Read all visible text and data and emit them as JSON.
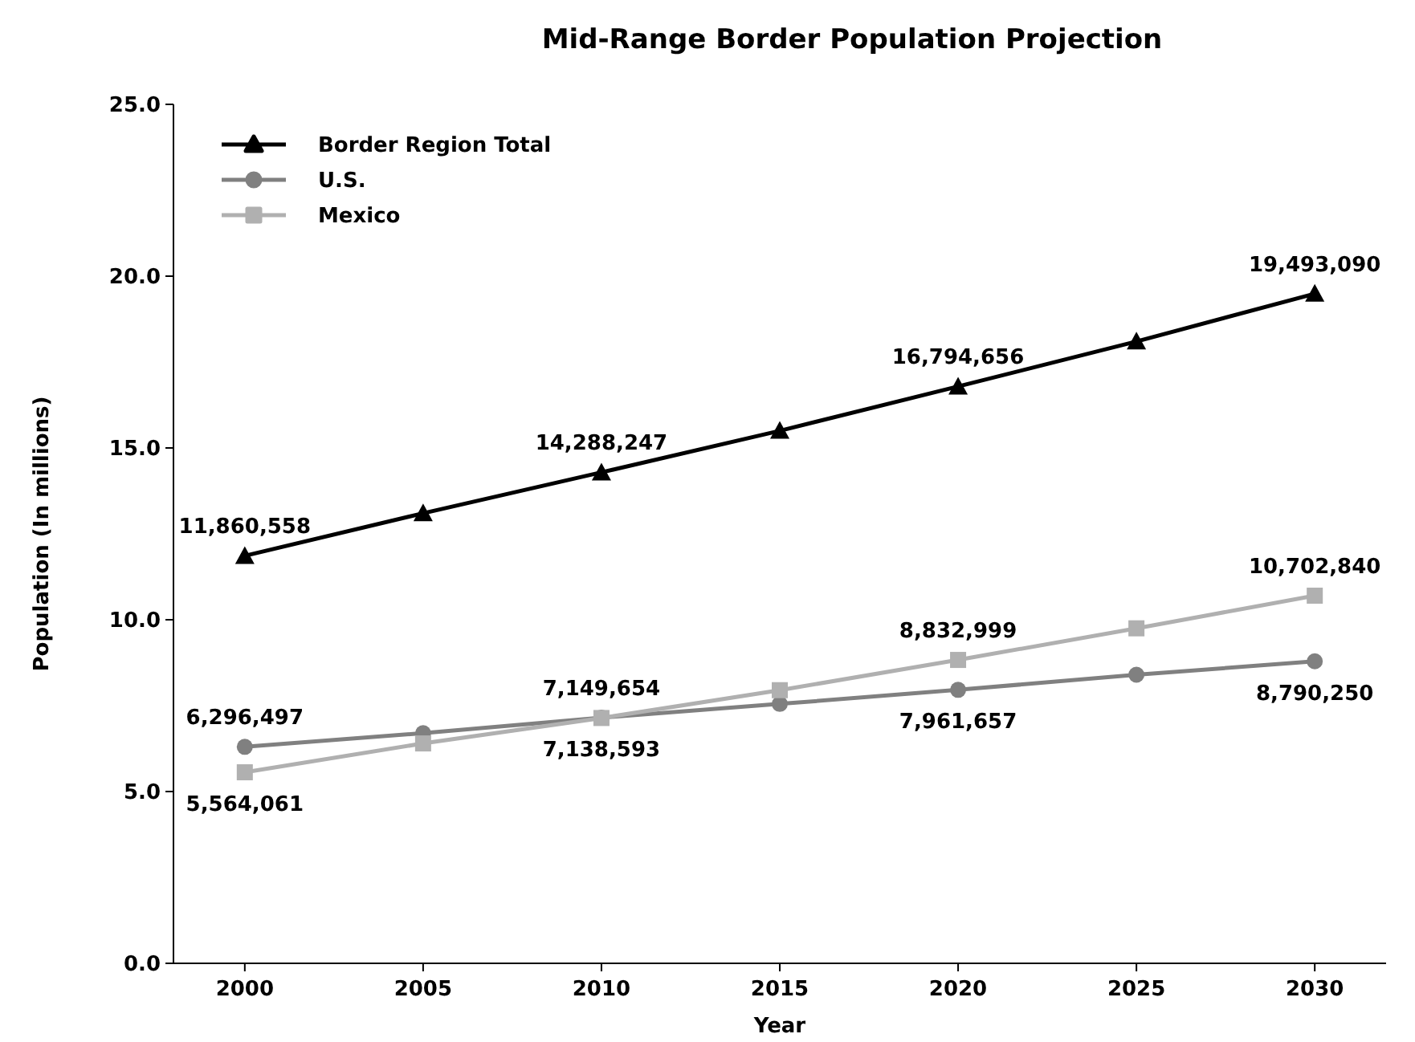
{
  "chart_data": {
    "type": "line",
    "title": "Mid-Range Border Population Projection",
    "xlabel": "Year",
    "ylabel": "Population (In millions)",
    "categories": [
      "2000",
      "2005",
      "2010",
      "2015",
      "2020",
      "2025",
      "2030"
    ],
    "ylim": [
      0,
      25
    ],
    "yticks": [
      {
        "value": 0,
        "label": "0.0"
      },
      {
        "value": 5,
        "label": "5.0"
      },
      {
        "value": 10,
        "label": "10.0"
      },
      {
        "value": 15,
        "label": "15.0"
      },
      {
        "value": 20,
        "label": "20.0"
      },
      {
        "value": 25,
        "label": "25.0"
      }
    ],
    "legend": "top left",
    "grid": false,
    "series": [
      {
        "name": "Border Region Total",
        "color": "#000000",
        "marker": "triangle",
        "values": [
          11.86,
          13.1,
          14.29,
          15.5,
          16.79,
          18.1,
          19.49
        ]
      },
      {
        "name": "U.S.",
        "color": "#808080",
        "marker": "circle",
        "values": [
          6.3,
          6.7,
          7.15,
          7.55,
          7.96,
          8.4,
          8.79
        ]
      },
      {
        "name": "Mexico",
        "color": "#b0b0b0",
        "marker": "square",
        "values": [
          5.56,
          6.4,
          7.14,
          7.95,
          8.83,
          9.75,
          10.7
        ]
      }
    ],
    "annotations": [
      {
        "text": "11,860,558",
        "x": "2000",
        "y": 11.86
      },
      {
        "text": "14,288,247",
        "x": "2010",
        "y": 14.29
      },
      {
        "text": "16,794,656",
        "x": "2020",
        "y": 16.79
      },
      {
        "text": "19,493,090",
        "x": "2030",
        "y": 19.49
      },
      {
        "text": "6,296,497",
        "x": "2000",
        "y": 6.3
      },
      {
        "text": "7,149,654",
        "x": "2010",
        "y": 7.15
      },
      {
        "text": "7,961,657",
        "x": "2020",
        "y": 7.96
      },
      {
        "text": "8,790,250",
        "x": "2030",
        "y": 8.79
      },
      {
        "text": "5,564,061",
        "x": "2000",
        "y": 5.56
      },
      {
        "text": "7,138,593",
        "x": "2010",
        "y": 7.14
      },
      {
        "text": "8,832,999",
        "x": "2020",
        "y": 8.83
      },
      {
        "text": "10,702,840",
        "x": "2030",
        "y": 10.7
      }
    ]
  }
}
